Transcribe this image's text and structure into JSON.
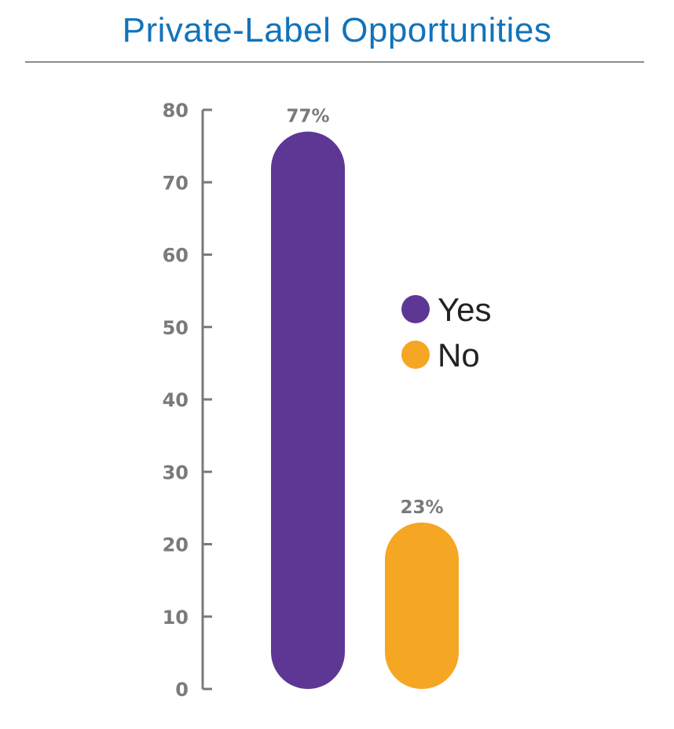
{
  "chart_data": {
    "type": "bar",
    "title": "Private-Label Opportunities",
    "categories": [
      "Yes",
      "No"
    ],
    "values": [
      77,
      23
    ],
    "value_labels": [
      "77%",
      "23%"
    ],
    "colors": [
      "#5e3795",
      "#f5a623"
    ],
    "ylim": [
      0,
      80
    ],
    "yticks": [
      "0",
      "10",
      "20",
      "30",
      "40",
      "50",
      "60",
      "70",
      "80"
    ],
    "grid": false,
    "legend": {
      "placement": "right",
      "entries": [
        {
          "label": "Yes",
          "color": "#5e3795"
        },
        {
          "label": "No",
          "color": "#f5a623"
        }
      ]
    }
  }
}
